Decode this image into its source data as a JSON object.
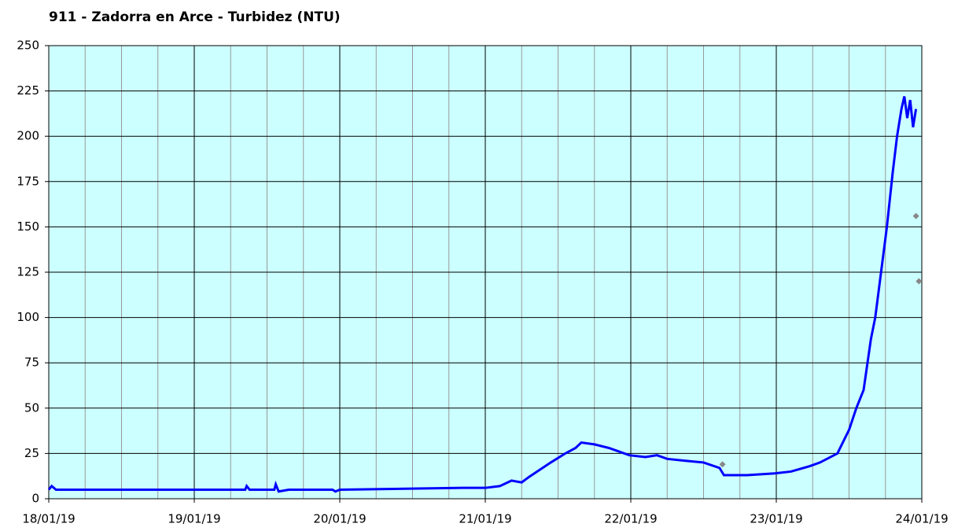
{
  "chart_data": {
    "type": "line",
    "title": "911 - Zadorra en Arce - Turbidez (NTU)",
    "xlim": [
      0,
      6
    ],
    "xticks": [
      {
        "value": 0,
        "label": "18/01/19"
      },
      {
        "value": 1,
        "label": "19/01/19"
      },
      {
        "value": 2,
        "label": "20/01/19"
      },
      {
        "value": 3,
        "label": "21/01/19"
      },
      {
        "value": 4,
        "label": "22/01/19"
      },
      {
        "value": 5,
        "label": "23/01/19"
      },
      {
        "value": 6,
        "label": "24/01/19"
      }
    ],
    "xminorticks": [
      0.25,
      0.5,
      0.75,
      1.25,
      1.5,
      1.75,
      2.25,
      2.5,
      2.75,
      3.25,
      3.5,
      3.75,
      4.25,
      4.5,
      4.75,
      5.25,
      5.5,
      5.75
    ],
    "ylim": [
      0,
      250
    ],
    "yticks": [
      0,
      25,
      50,
      75,
      100,
      125,
      150,
      175,
      200,
      225,
      250
    ],
    "grid": true,
    "background": "#ccffff",
    "series": [
      {
        "style": "line",
        "color": "#0000ff",
        "x": [
          0,
          0.02,
          0.05,
          1.35,
          1.36,
          1.38,
          1.55,
          1.56,
          1.58,
          1.65,
          1.95,
          1.97,
          2.0,
          2.85,
          3.0,
          3.1,
          3.18,
          3.25,
          3.3,
          3.45,
          3.55,
          3.62,
          3.66,
          3.75,
          3.85,
          3.99,
          4.1,
          4.18,
          4.25,
          4.37,
          4.5,
          4.61,
          4.64,
          4.8,
          4.99,
          5.1,
          5.23,
          5.3,
          5.42,
          5.5,
          5.55,
          5.6,
          5.65,
          5.68,
          5.72,
          5.76,
          5.8,
          5.83,
          5.86,
          5.88,
          5.9,
          5.92,
          5.94,
          5.96
        ],
        "values": [
          5,
          7,
          5,
          5,
          7,
          5,
          5,
          8,
          4,
          5,
          5,
          4,
          5,
          6,
          6,
          7,
          10,
          9,
          12,
          20,
          25,
          28,
          31,
          30,
          28,
          24,
          23,
          24,
          22,
          21,
          20,
          17,
          13,
          13,
          14,
          15,
          18,
          20,
          25,
          38,
          50,
          60,
          88,
          100,
          125,
          150,
          180,
          200,
          215,
          222,
          210,
          220,
          205,
          215
        ]
      },
      {
        "style": "markers",
        "color": "#888888",
        "x": [
          4.63,
          5.96,
          5.98
        ],
        "values": [
          19,
          156,
          120
        ]
      }
    ]
  }
}
